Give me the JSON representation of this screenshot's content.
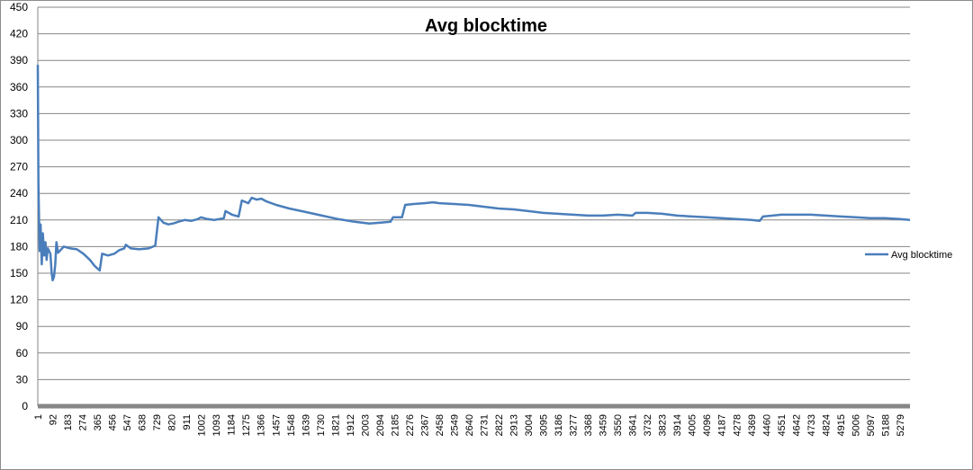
{
  "chart_data": {
    "type": "line",
    "title": "Avg blocktime",
    "xlabel": "",
    "ylabel": "",
    "ylim": [
      0,
      450
    ],
    "y_ticks": [
      0,
      30,
      60,
      90,
      120,
      150,
      180,
      210,
      240,
      270,
      300,
      330,
      360,
      390,
      420,
      450
    ],
    "x_range": [
      1,
      5340
    ],
    "x_tick_labels": [
      "1",
      "92",
      "183",
      "274",
      "365",
      "456",
      "547",
      "638",
      "729",
      "820",
      "911",
      "1002",
      "1093",
      "1184",
      "1275",
      "1366",
      "1457",
      "1548",
      "1639",
      "1730",
      "1821",
      "1912",
      "2003",
      "2094",
      "2185",
      "2276",
      "2367",
      "2458",
      "2549",
      "2640",
      "2731",
      "2822",
      "2913",
      "3004",
      "3095",
      "3186",
      "3277",
      "3368",
      "3459",
      "3550",
      "3641",
      "3732",
      "3823",
      "3914",
      "4005",
      "4096",
      "4187",
      "4278",
      "4369",
      "4460",
      "4551",
      "4642",
      "4733",
      "4824",
      "4915",
      "5006",
      "5097",
      "5188",
      "5279"
    ],
    "grid": "horizontal",
    "legend": "right",
    "series_color": "#4a7ebb",
    "series": [
      {
        "name": "Avg blocktime",
        "points": [
          [
            1,
            385
          ],
          [
            5,
            250
          ],
          [
            12,
            175
          ],
          [
            18,
            205
          ],
          [
            25,
            160
          ],
          [
            32,
            195
          ],
          [
            40,
            170
          ],
          [
            48,
            185
          ],
          [
            55,
            165
          ],
          [
            62,
            178
          ],
          [
            70,
            175
          ],
          [
            78,
            172
          ],
          [
            86,
            150
          ],
          [
            92,
            142
          ],
          [
            100,
            146
          ],
          [
            108,
            160
          ],
          [
            115,
            185
          ],
          [
            125,
            173
          ],
          [
            140,
            176
          ],
          [
            160,
            180
          ],
          [
            200,
            178
          ],
          [
            240,
            177
          ],
          [
            280,
            172
          ],
          [
            320,
            165
          ],
          [
            350,
            158
          ],
          [
            380,
            153
          ],
          [
            395,
            172
          ],
          [
            430,
            170
          ],
          [
            470,
            172
          ],
          [
            500,
            176
          ],
          [
            530,
            178
          ],
          [
            540,
            182
          ],
          [
            570,
            178
          ],
          [
            620,
            177
          ],
          [
            680,
            178
          ],
          [
            720,
            181
          ],
          [
            740,
            213
          ],
          [
            770,
            207
          ],
          [
            800,
            205
          ],
          [
            830,
            206
          ],
          [
            860,
            208
          ],
          [
            900,
            210
          ],
          [
            940,
            209
          ],
          [
            980,
            211
          ],
          [
            1000,
            213
          ],
          [
            1040,
            211
          ],
          [
            1080,
            210
          ],
          [
            1140,
            212
          ],
          [
            1150,
            220
          ],
          [
            1190,
            216
          ],
          [
            1230,
            214
          ],
          [
            1250,
            232
          ],
          [
            1290,
            229
          ],
          [
            1310,
            235
          ],
          [
            1340,
            233
          ],
          [
            1370,
            234
          ],
          [
            1400,
            231
          ],
          [
            1460,
            227
          ],
          [
            1540,
            223
          ],
          [
            1640,
            219
          ],
          [
            1740,
            215
          ],
          [
            1840,
            211
          ],
          [
            1940,
            208
          ],
          [
            2030,
            206
          ],
          [
            2100,
            207
          ],
          [
            2160,
            208
          ],
          [
            2175,
            213
          ],
          [
            2230,
            213
          ],
          [
            2250,
            227
          ],
          [
            2300,
            228
          ],
          [
            2367,
            229
          ],
          [
            2420,
            230
          ],
          [
            2460,
            229
          ],
          [
            2550,
            228
          ],
          [
            2640,
            227
          ],
          [
            2730,
            225
          ],
          [
            2820,
            223
          ],
          [
            2913,
            222
          ],
          [
            3004,
            220
          ],
          [
            3095,
            218
          ],
          [
            3186,
            217
          ],
          [
            3277,
            216
          ],
          [
            3368,
            215
          ],
          [
            3459,
            215
          ],
          [
            3550,
            216
          ],
          [
            3641,
            215
          ],
          [
            3660,
            218
          ],
          [
            3732,
            218
          ],
          [
            3823,
            217
          ],
          [
            3914,
            215
          ],
          [
            4005,
            214
          ],
          [
            4096,
            213
          ],
          [
            4187,
            212
          ],
          [
            4278,
            211
          ],
          [
            4369,
            210
          ],
          [
            4420,
            209
          ],
          [
            4440,
            214
          ],
          [
            4500,
            215
          ],
          [
            4551,
            216
          ],
          [
            4642,
            216
          ],
          [
            4733,
            216
          ],
          [
            4824,
            215
          ],
          [
            4915,
            214
          ],
          [
            5006,
            213
          ],
          [
            5097,
            212
          ],
          [
            5188,
            212
          ],
          [
            5279,
            211
          ],
          [
            5340,
            210
          ]
        ]
      }
    ]
  }
}
